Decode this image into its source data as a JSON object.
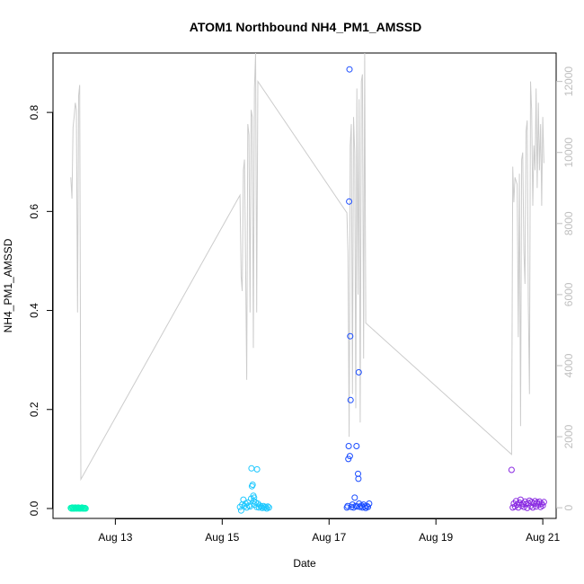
{
  "chart_data": {
    "type": "scatter",
    "title": "ATOM1 Northbound NH4_PM1_AMSSD",
    "xlabel": "Date",
    "ylabel": "NH4_PM1_AMSSD",
    "ylim": [
      -0.02,
      0.92
    ],
    "xlim": [
      "2022-08-11 20:00",
      "2022-08-21 06:00"
    ],
    "x_ticks": [
      {
        "label": "Aug 13",
        "date": "2022-08-13"
      },
      {
        "label": "Aug 15",
        "date": "2022-08-15"
      },
      {
        "label": "Aug 17",
        "date": "2022-08-17"
      },
      {
        "label": "Aug 19",
        "date": "2022-08-19"
      },
      {
        "label": "Aug 21",
        "date": "2022-08-21"
      }
    ],
    "y_ticks": [
      "0.0",
      "0.2",
      "0.4",
      "0.6",
      "0.8"
    ],
    "y_tick_values": [
      0.0,
      0.2,
      0.4,
      0.6,
      0.8
    ],
    "y2_ticks": [
      "0",
      "2000",
      "4000",
      "6000",
      "8000",
      "10000",
      "12000"
    ],
    "y2_tick_values": [
      0,
      2000,
      4000,
      6000,
      8000,
      10000,
      12000
    ],
    "y2lim": [
      -300,
      12800
    ],
    "grid": false,
    "legend": "none",
    "colors": {
      "line": "#cccccc",
      "right_axis": "#bfbfbf",
      "group1": "#00f5b8",
      "group2": "#1ec8ff",
      "group3": "#1a4cff",
      "group4": "#8a2be2"
    },
    "series": [
      {
        "type": "scatter",
        "groups": [
          {
            "color_key": "group1",
            "points": [
              [
                "2022-08-12 04:00",
                0.001
              ],
              [
                "2022-08-12 04:20",
                0.0
              ],
              [
                "2022-08-12 04:40",
                0.002
              ],
              [
                "2022-08-12 05:00",
                0.0
              ],
              [
                "2022-08-12 05:20",
                0.001
              ],
              [
                "2022-08-12 05:40",
                0.0
              ],
              [
                "2022-08-12 06:00",
                0.002
              ],
              [
                "2022-08-12 06:20",
                0.001
              ],
              [
                "2022-08-12 06:40",
                0.0
              ],
              [
                "2022-08-12 07:00",
                0.001
              ],
              [
                "2022-08-12 07:20",
                0.002
              ],
              [
                "2022-08-12 07:40",
                0.0
              ],
              [
                "2022-08-12 08:00",
                0.001
              ],
              [
                "2022-08-12 08:20",
                0.0
              ],
              [
                "2022-08-12 08:40",
                0.001
              ],
              [
                "2022-08-12 09:00",
                0.002
              ],
              [
                "2022-08-12 09:20",
                0.0
              ],
              [
                "2022-08-12 09:40",
                0.001
              ],
              [
                "2022-08-12 10:00",
                0.0
              ],
              [
                "2022-08-12 10:20",
                0.001
              ],
              [
                "2022-08-12 10:40",
                0.0
              ]
            ]
          },
          {
            "color_key": "group2",
            "points": [
              [
                "2022-08-15 08:00",
                0.003
              ],
              [
                "2022-08-15 08:30",
                -0.004
              ],
              [
                "2022-08-15 09:00",
                0.008
              ],
              [
                "2022-08-15 09:30",
                0.018
              ],
              [
                "2022-08-15 10:00",
                0.005
              ],
              [
                "2022-08-15 10:30",
                0.01
              ],
              [
                "2022-08-15 11:00",
                0.002
              ],
              [
                "2022-08-15 11:30",
                0.012
              ],
              [
                "2022-08-15 12:00",
                0.006
              ],
              [
                "2022-08-15 12:30",
                0.004
              ],
              [
                "2022-08-15 13:00",
                0.02
              ],
              [
                "2022-08-15 13:10",
                0.081
              ],
              [
                "2022-08-15 13:20",
                0.045
              ],
              [
                "2022-08-15 13:40",
                0.048
              ],
              [
                "2022-08-15 14:00",
                0.026
              ],
              [
                "2022-08-15 14:10",
                0.015
              ],
              [
                "2022-08-15 14:20",
                0.022
              ],
              [
                "2022-08-15 14:30",
                0.008
              ],
              [
                "2022-08-15 15:00",
                0.012
              ],
              [
                "2022-08-15 15:30",
                0.003
              ],
              [
                "2022-08-15 15:40",
                0.079
              ],
              [
                "2022-08-15 16:00",
                0.01
              ],
              [
                "2022-08-15 16:30",
                0.002
              ],
              [
                "2022-08-15 17:00",
                0.006
              ],
              [
                "2022-08-15 17:30",
                0.004
              ],
              [
                "2022-08-15 18:00",
                0.001
              ],
              [
                "2022-08-15 18:30",
                0.005
              ],
              [
                "2022-08-15 19:00",
                0.002
              ],
              [
                "2022-08-15 19:30",
                0.003
              ],
              [
                "2022-08-15 20:00",
                0.0
              ],
              [
                "2022-08-15 20:30",
                0.004
              ],
              [
                "2022-08-15 21:00",
                0.002
              ]
            ]
          },
          {
            "color_key": "group3",
            "points": [
              [
                "2022-08-17 08:00",
                0.002
              ],
              [
                "2022-08-17 08:20",
                0.005
              ],
              [
                "2022-08-17 08:40",
                0.1
              ],
              [
                "2022-08-17 08:50",
                0.126
              ],
              [
                "2022-08-17 09:00",
                0.62
              ],
              [
                "2022-08-17 09:10",
                0.887
              ],
              [
                "2022-08-17 09:20",
                0.106
              ],
              [
                "2022-08-17 09:30",
                0.348
              ],
              [
                "2022-08-17 09:40",
                0.219
              ],
              [
                "2022-08-17 10:00",
                0.003
              ],
              [
                "2022-08-17 10:30",
                0.008
              ],
              [
                "2022-08-17 11:00",
                0.002
              ],
              [
                "2022-08-17 11:30",
                0.022
              ],
              [
                "2022-08-17 12:00",
                0.005
              ],
              [
                "2022-08-17 12:20",
                0.126
              ],
              [
                "2022-08-17 12:40",
                0.004
              ],
              [
                "2022-08-17 13:00",
                0.07
              ],
              [
                "2022-08-17 13:10",
                0.06
              ],
              [
                "2022-08-17 13:20",
                0.275
              ],
              [
                "2022-08-17 13:30",
                0.01
              ],
              [
                "2022-08-17 14:00",
                0.003
              ],
              [
                "2022-08-17 14:30",
                0.006
              ],
              [
                "2022-08-17 15:00",
                0.002
              ],
              [
                "2022-08-17 15:30",
                0.008
              ],
              [
                "2022-08-17 16:00",
                0.004
              ],
              [
                "2022-08-17 16:30",
                0.001
              ],
              [
                "2022-08-17 17:00",
                0.005
              ],
              [
                "2022-08-17 17:30",
                0.003
              ],
              [
                "2022-08-17 18:00",
                0.01
              ]
            ]
          },
          {
            "color_key": "group4",
            "points": [
              [
                "2022-08-20 10:00",
                0.078
              ],
              [
                "2022-08-20 10:30",
                0.002
              ],
              [
                "2022-08-20 11:00",
                0.01
              ],
              [
                "2022-08-20 11:30",
                0.004
              ],
              [
                "2022-08-20 12:00",
                0.015
              ],
              [
                "2022-08-20 12:30",
                0.008
              ],
              [
                "2022-08-20 13:00",
                0.002
              ],
              [
                "2022-08-20 13:30",
                0.012
              ],
              [
                "2022-08-20 14:00",
                0.018
              ],
              [
                "2022-08-20 14:30",
                0.006
              ],
              [
                "2022-08-20 15:00",
                0.01
              ],
              [
                "2022-08-20 15:30",
                0.003
              ],
              [
                "2022-08-20 16:00",
                0.014
              ],
              [
                "2022-08-20 16:30",
                0.009
              ],
              [
                "2022-08-20 17:00",
                0.001
              ],
              [
                "2022-08-20 17:30",
                0.011
              ],
              [
                "2022-08-20 18:00",
                0.016
              ],
              [
                "2022-08-20 18:30",
                0.005
              ],
              [
                "2022-08-20 19:00",
                0.013
              ],
              [
                "2022-08-20 19:30",
                0.002
              ],
              [
                "2022-08-20 20:00",
                0.01
              ],
              [
                "2022-08-20 20:30",
                0.015
              ],
              [
                "2022-08-20 21:00",
                0.004
              ],
              [
                "2022-08-20 21:30",
                0.012
              ],
              [
                "2022-08-20 22:00",
                0.008
              ],
              [
                "2022-08-20 22:30",
                0.014
              ],
              [
                "2022-08-20 23:00",
                0.003
              ],
              [
                "2022-08-20 23:30",
                0.01
              ],
              [
                "2022-08-21 00:00",
                0.006
              ],
              [
                "2022-08-21 00:30",
                0.013
              ]
            ]
          }
        ]
      },
      {
        "type": "line",
        "axis": "right",
        "color_key": "line",
        "points": [
          [
            "2022-08-12 04:00",
            9300
          ],
          [
            "2022-08-12 04:30",
            8700
          ],
          [
            "2022-08-12 05:00",
            10700
          ],
          [
            "2022-08-12 05:30",
            11000
          ],
          [
            "2022-08-12 06:00",
            11400
          ],
          [
            "2022-08-12 06:30",
            11200
          ],
          [
            "2022-08-12 07:00",
            5500
          ],
          [
            "2022-08-12 07:30",
            11600
          ],
          [
            "2022-08-12 08:00",
            11900
          ],
          [
            "2022-08-12 08:30",
            800
          ],
          [
            "2022-08-15 08:00",
            8800
          ],
          [
            "2022-08-15 08:30",
            6500
          ],
          [
            "2022-08-15 09:00",
            6100
          ],
          [
            "2022-08-15 09:30",
            9500
          ],
          [
            "2022-08-15 10:00",
            9800
          ],
          [
            "2022-08-15 10:30",
            7000
          ],
          [
            "2022-08-15 11:00",
            3600
          ],
          [
            "2022-08-15 11:30",
            10800
          ],
          [
            "2022-08-15 12:00",
            10500
          ],
          [
            "2022-08-15 12:30",
            5500
          ],
          [
            "2022-08-15 13:00",
            11200
          ],
          [
            "2022-08-15 13:30",
            11000
          ],
          [
            "2022-08-15 14:00",
            4500
          ],
          [
            "2022-08-15 14:30",
            11800
          ],
          [
            "2022-08-15 15:00",
            12800
          ],
          [
            "2022-08-15 15:30",
            5500
          ],
          [
            "2022-08-15 16:00",
            12000
          ],
          [
            "2022-08-17 08:00",
            8300
          ],
          [
            "2022-08-17 08:30",
            7200
          ],
          [
            "2022-08-17 09:00",
            2000
          ],
          [
            "2022-08-17 09:30",
            10200
          ],
          [
            "2022-08-17 10:00",
            10800
          ],
          [
            "2022-08-17 10:30",
            3200
          ],
          [
            "2022-08-17 11:00",
            11000
          ],
          [
            "2022-08-17 11:30",
            10000
          ],
          [
            "2022-08-17 12:00",
            2800
          ],
          [
            "2022-08-17 12:30",
            11800
          ],
          [
            "2022-08-17 13:00",
            6000
          ],
          [
            "2022-08-17 13:30",
            11500
          ],
          [
            "2022-08-17 14:00",
            2400
          ],
          [
            "2022-08-17 14:30",
            12000
          ],
          [
            "2022-08-17 15:00",
            12200
          ],
          [
            "2022-08-17 15:30",
            4200
          ],
          [
            "2022-08-17 16:00",
            12800
          ],
          [
            "2022-08-17 16:30",
            5200
          ],
          [
            "2022-08-20 10:00",
            1500
          ],
          [
            "2022-08-20 10:30",
            9600
          ],
          [
            "2022-08-20 11:00",
            8600
          ],
          [
            "2022-08-20 11:30",
            9300
          ],
          [
            "2022-08-20 12:00",
            9200
          ],
          [
            "2022-08-20 12:30",
            9100
          ],
          [
            "2022-08-20 13:00",
            4800
          ],
          [
            "2022-08-20 13:30",
            9400
          ],
          [
            "2022-08-20 14:00",
            2300
          ],
          [
            "2022-08-20 14:30",
            9800
          ],
          [
            "2022-08-20 15:00",
            10000
          ],
          [
            "2022-08-20 15:30",
            7200
          ],
          [
            "2022-08-20 16:00",
            6300
          ],
          [
            "2022-08-20 16:30",
            10600
          ],
          [
            "2022-08-20 17:00",
            10900
          ],
          [
            "2022-08-20 17:30",
            5800
          ],
          [
            "2022-08-20 18:00",
            3200
          ],
          [
            "2022-08-20 18:30",
            12000
          ],
          [
            "2022-08-20 19:00",
            11200
          ],
          [
            "2022-08-20 19:30",
            8500
          ],
          [
            "2022-08-20 20:00",
            10200
          ],
          [
            "2022-08-20 20:30",
            9500
          ],
          [
            "2022-08-20 21:00",
            11800
          ],
          [
            "2022-08-20 21:30",
            9000
          ],
          [
            "2022-08-20 22:00",
            11400
          ],
          [
            "2022-08-20 22:30",
            9500
          ],
          [
            "2022-08-20 23:00",
            10800
          ],
          [
            "2022-08-20 23:30",
            8500
          ],
          [
            "2022-08-21 00:00",
            11000
          ],
          [
            "2022-08-21 00:30",
            9700
          ]
        ]
      }
    ]
  }
}
